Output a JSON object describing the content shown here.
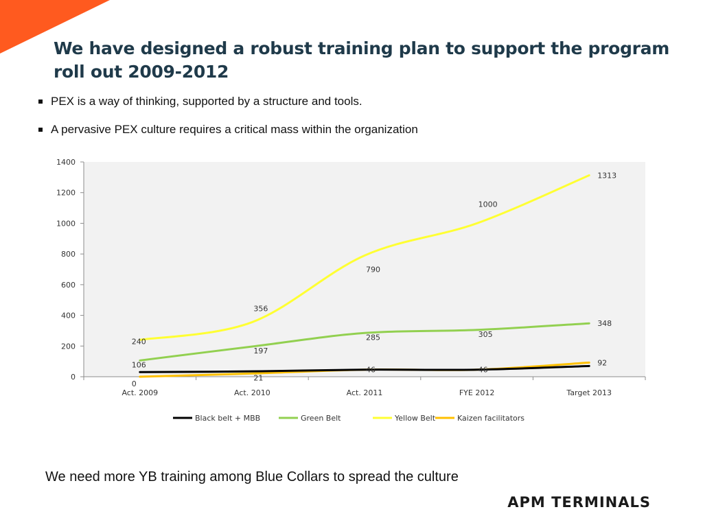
{
  "slide": {
    "title": "We have designed a robust training plan to support the program roll out 2009-2012",
    "bullets": [
      "PEX is a way of thinking, supported by a structure and tools.",
      "A pervasive PEX culture requires a critical mass within the organization"
    ],
    "footer_note": "We need more YB training among Blue Collars to spread the culture",
    "logo_text": "APM TERMINALS",
    "accent_color": "#ff5a1f"
  },
  "chart_data": {
    "type": "line",
    "categories": [
      "Act. 2009",
      "Act. 2010",
      "Act. 2011",
      "FYE 2012",
      "Target 2013"
    ],
    "ylim": [
      0,
      1400
    ],
    "yticks": [
      0,
      200,
      400,
      600,
      800,
      1000,
      1200,
      1400
    ],
    "grid": false,
    "legend_position": "bottom",
    "series": [
      {
        "name": "Black belt + MBB",
        "color": "#000000",
        "values": [
          30,
          35,
          46,
          46,
          70
        ],
        "labels": [
          null,
          null,
          null,
          null,
          null
        ]
      },
      {
        "name": "Green Belt",
        "color": "#92d050",
        "values": [
          106,
          197,
          285,
          305,
          348
        ],
        "labels": [
          "106",
          "197",
          "285",
          "305",
          "348"
        ]
      },
      {
        "name": "Yellow Belt",
        "color": "#ffff33",
        "values": [
          240,
          356,
          790,
          1000,
          1313
        ],
        "labels": [
          "240",
          "356",
          "790",
          "1000",
          "1313"
        ]
      },
      {
        "name": "Kaizen facilitators",
        "color": "#ffc000",
        "values": [
          0,
          21,
          46,
          46,
          92
        ],
        "labels": [
          "0",
          "21",
          "46",
          "46",
          "92"
        ]
      }
    ]
  }
}
